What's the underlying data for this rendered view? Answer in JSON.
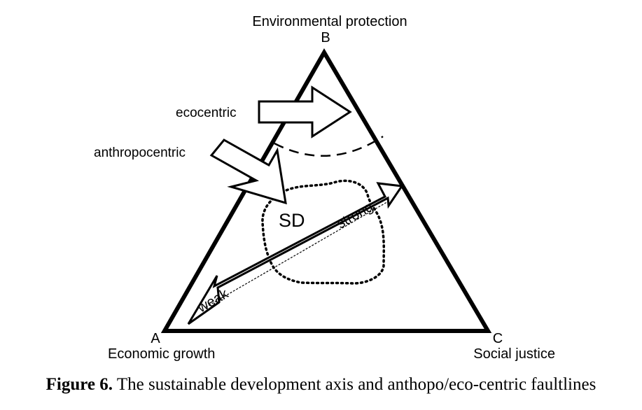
{
  "vertices": {
    "top": {
      "letter": "B",
      "name": "Environmental protection"
    },
    "left": {
      "letter": "A",
      "name": "Economic growth"
    },
    "right": {
      "letter": "C",
      "name": "Social justice"
    }
  },
  "arrows": {
    "ecocentric": "ecocentric",
    "anthropocentric": "anthropocentric"
  },
  "region": {
    "label": "SD"
  },
  "axis": {
    "weak": "weak",
    "strong": "strong"
  },
  "caption": {
    "figure_label": "Figure 6.",
    "text": "The sustainable development axis and anthopo/eco-centric faultlines"
  }
}
